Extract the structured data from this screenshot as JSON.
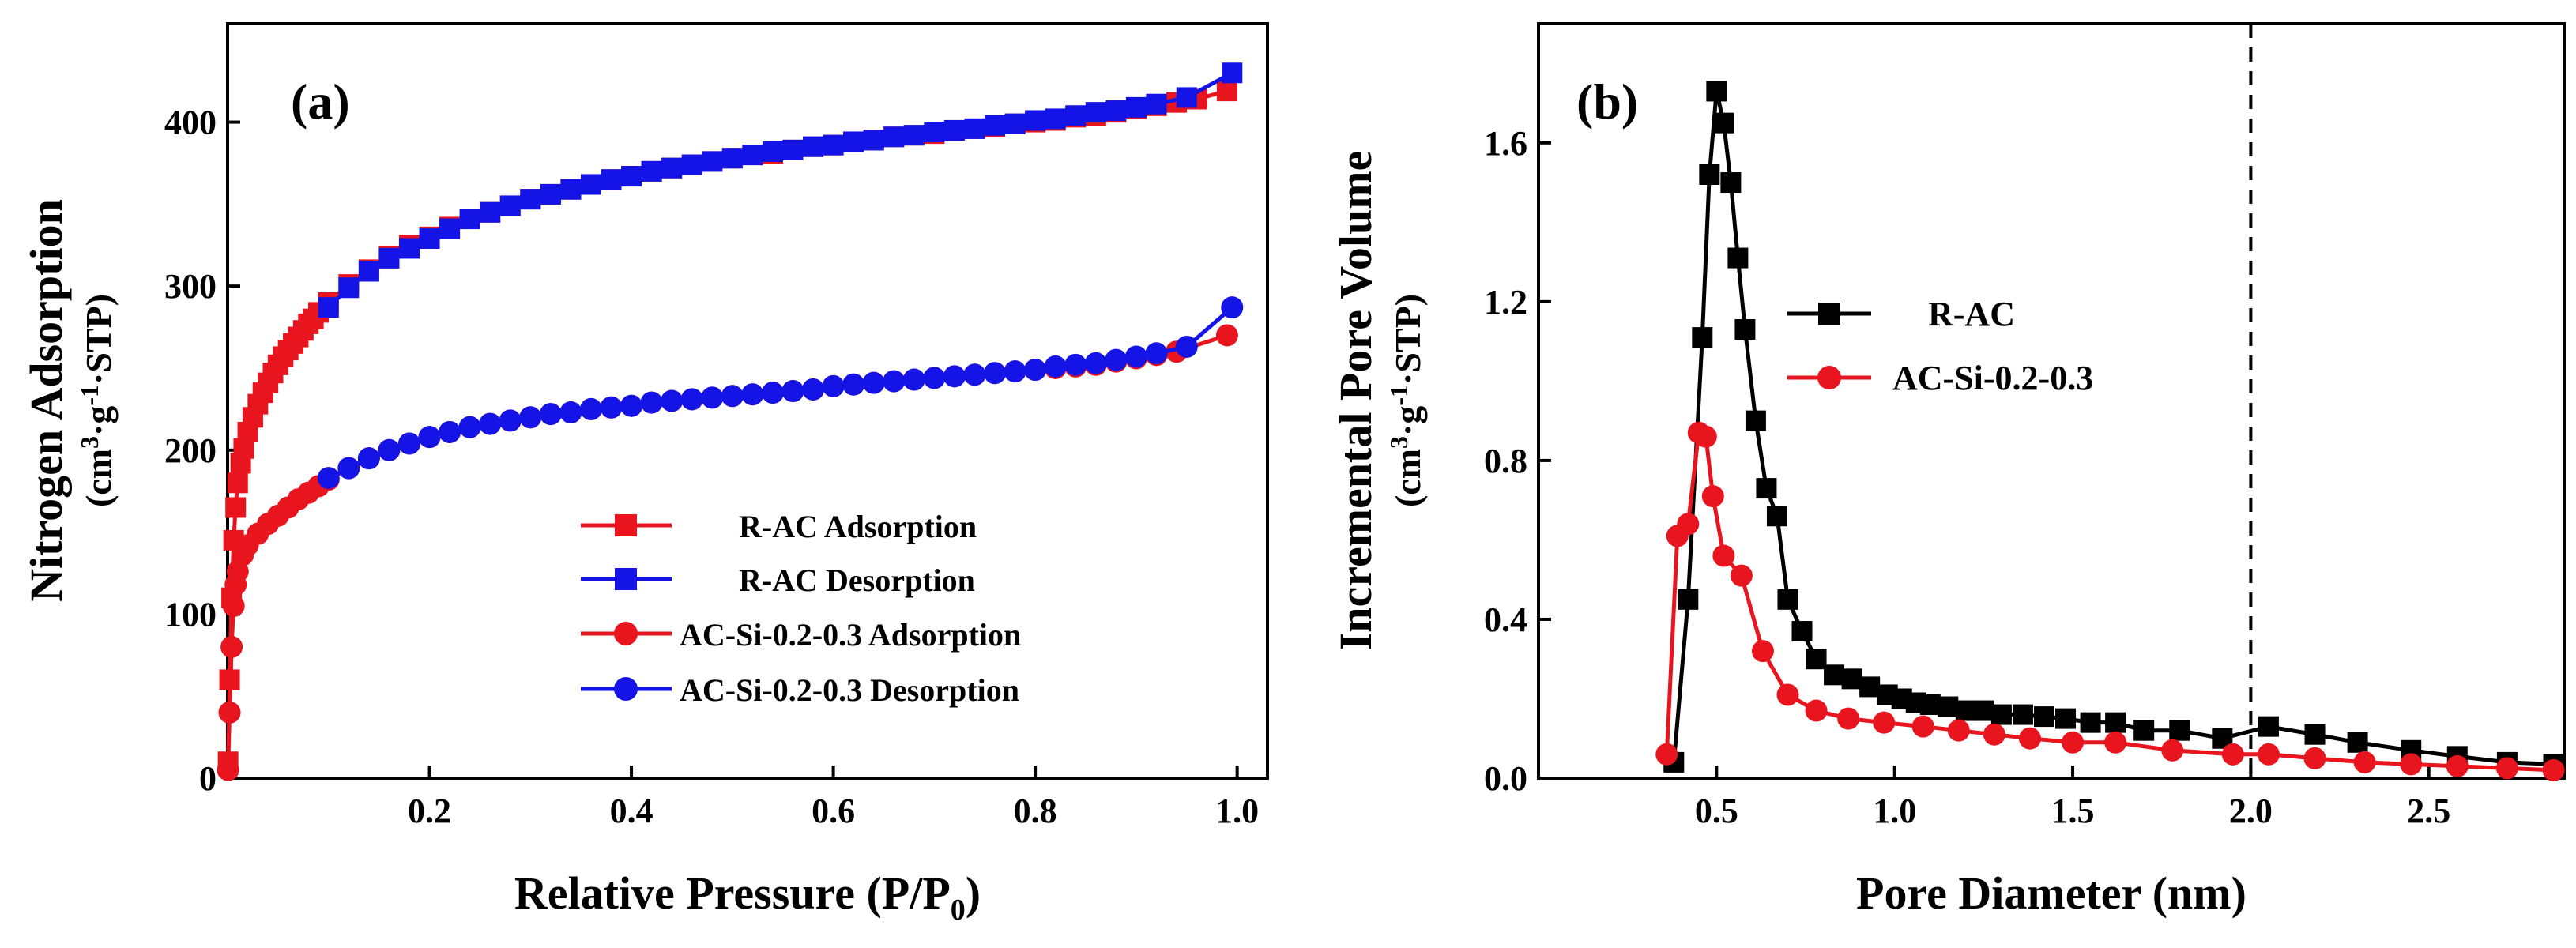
{
  "chart_data": [
    {
      "type": "line",
      "panel_label": "(a)",
      "xlabel": "Relative Pressure (P/P",
      "xlabel_sub": "0",
      "xlabel_end": ")",
      "ylabel": "Nitrogen Adsorption",
      "yunit": {
        "pre": "(cm",
        "sup1": "3",
        "dot1": "·",
        "g": "g",
        "sup2": "-1",
        "dot2": "·",
        "post": "STP)"
      },
      "xlim": [
        0.0,
        1.03
      ],
      "ylim": [
        0,
        460
      ],
      "xticks": [
        0.2,
        0.4,
        0.6,
        0.8,
        1.0
      ],
      "xtick_labels": [
        "0.2",
        "0.4",
        "0.6",
        "0.8",
        "1.0"
      ],
      "yticks": [
        0,
        100,
        200,
        300,
        400
      ],
      "ytick_labels": [
        "0",
        "100",
        "200",
        "300",
        "400"
      ],
      "grid": false,
      "legend_position": "bottom-right",
      "series": [
        {
          "name": "R-AC Adsorption",
          "color": "#e8141e",
          "marker": "square",
          "x": [
            0.0005,
            0.002,
            0.004,
            0.006,
            0.008,
            0.01,
            0.013,
            0.016,
            0.02,
            0.025,
            0.03,
            0.035,
            0.04,
            0.045,
            0.05,
            0.055,
            0.06,
            0.065,
            0.07,
            0.075,
            0.08,
            0.085,
            0.09,
            0.1,
            0.12,
            0.14,
            0.16,
            0.18,
            0.2,
            0.22,
            0.24,
            0.26,
            0.28,
            0.3,
            0.32,
            0.34,
            0.36,
            0.38,
            0.4,
            0.42,
            0.44,
            0.46,
            0.48,
            0.5,
            0.52,
            0.54,
            0.56,
            0.58,
            0.6,
            0.62,
            0.64,
            0.66,
            0.68,
            0.7,
            0.72,
            0.74,
            0.76,
            0.78,
            0.8,
            0.82,
            0.84,
            0.86,
            0.88,
            0.9,
            0.92,
            0.94,
            0.96,
            0.99
          ],
          "y": [
            10,
            60,
            110,
            145,
            165,
            180,
            192,
            201,
            211,
            220,
            228,
            235,
            241,
            247,
            252,
            257,
            261,
            265,
            269,
            273,
            277,
            280,
            284,
            290,
            301,
            310,
            318,
            325,
            330,
            336,
            341,
            345,
            349,
            353,
            356,
            359,
            362,
            365,
            367,
            370,
            372,
            374,
            376,
            378,
            380,
            381,
            383,
            385,
            386,
            388,
            389,
            391,
            392,
            393,
            395,
            396,
            397,
            399,
            400,
            401,
            403,
            404,
            406,
            408,
            410,
            412,
            414,
            419
          ]
        },
        {
          "name": "R-AC Desorption",
          "color": "#1414e6",
          "marker": "square",
          "x": [
            0.1,
            0.12,
            0.14,
            0.16,
            0.18,
            0.2,
            0.22,
            0.24,
            0.26,
            0.28,
            0.3,
            0.32,
            0.34,
            0.36,
            0.38,
            0.4,
            0.42,
            0.44,
            0.46,
            0.48,
            0.5,
            0.52,
            0.54,
            0.56,
            0.58,
            0.6,
            0.62,
            0.64,
            0.66,
            0.68,
            0.7,
            0.72,
            0.74,
            0.76,
            0.78,
            0.8,
            0.82,
            0.84,
            0.86,
            0.88,
            0.9,
            0.92,
            0.95,
            0.995
          ],
          "y": [
            287,
            299,
            309,
            317,
            323,
            329,
            335,
            341,
            345,
            349,
            353,
            356,
            359,
            362,
            365,
            367,
            370,
            372,
            374,
            376,
            378,
            380,
            382,
            383,
            385,
            386,
            388,
            389,
            391,
            392,
            394,
            395,
            396,
            398,
            399,
            401,
            402,
            404,
            406,
            407,
            409,
            411,
            415,
            430
          ]
        },
        {
          "name": "AC-Si-0.2-0.3 Adsorption",
          "color": "#e8141e",
          "marker": "circle",
          "x": [
            0.0005,
            0.002,
            0.004,
            0.006,
            0.008,
            0.01,
            0.015,
            0.02,
            0.03,
            0.04,
            0.05,
            0.06,
            0.07,
            0.08,
            0.09,
            0.1,
            0.12,
            0.14,
            0.16,
            0.18,
            0.2,
            0.22,
            0.24,
            0.26,
            0.28,
            0.3,
            0.32,
            0.34,
            0.36,
            0.38,
            0.4,
            0.42,
            0.44,
            0.46,
            0.48,
            0.5,
            0.52,
            0.54,
            0.56,
            0.58,
            0.6,
            0.62,
            0.64,
            0.66,
            0.68,
            0.7,
            0.72,
            0.74,
            0.76,
            0.78,
            0.8,
            0.82,
            0.84,
            0.86,
            0.88,
            0.9,
            0.92,
            0.94,
            0.99
          ],
          "y": [
            5,
            40,
            80,
            105,
            118,
            126,
            136,
            142,
            149,
            155,
            160,
            165,
            170,
            174,
            178,
            182,
            189,
            195,
            200,
            204,
            208,
            211,
            214,
            216,
            218,
            220,
            222,
            223,
            225,
            226,
            227,
            229,
            230,
            231,
            232,
            233,
            234,
            235,
            236,
            237,
            239,
            240,
            241,
            242,
            243,
            244,
            245,
            246,
            247,
            248,
            249,
            250,
            251,
            252,
            254,
            256,
            258,
            260,
            270
          ]
        },
        {
          "name": "AC-Si-0.2-0.3 Desorption",
          "color": "#1414e6",
          "marker": "circle",
          "x": [
            0.1,
            0.12,
            0.14,
            0.16,
            0.18,
            0.2,
            0.22,
            0.24,
            0.26,
            0.28,
            0.3,
            0.32,
            0.34,
            0.36,
            0.38,
            0.4,
            0.42,
            0.44,
            0.46,
            0.48,
            0.5,
            0.52,
            0.54,
            0.56,
            0.58,
            0.6,
            0.62,
            0.64,
            0.66,
            0.68,
            0.7,
            0.72,
            0.74,
            0.76,
            0.78,
            0.8,
            0.82,
            0.84,
            0.86,
            0.88,
            0.9,
            0.92,
            0.95,
            0.995
          ],
          "y": [
            183,
            189,
            195,
            200,
            204,
            208,
            211,
            214,
            216,
            218,
            220,
            222,
            223,
            225,
            226,
            227,
            229,
            230,
            231,
            232,
            233,
            234,
            235,
            236,
            237,
            239,
            240,
            241,
            242,
            243,
            244,
            245,
            246,
            247,
            248,
            249,
            251,
            252,
            253,
            255,
            257,
            259,
            263,
            287
          ]
        }
      ]
    },
    {
      "type": "line",
      "panel_label": "(b)",
      "xlabel": "Pore Diameter (nm)",
      "ylabel": "Incremental Pore Volume",
      "yunit": {
        "pre": "(cm",
        "sup1": "3",
        "dot1": "·",
        "g": "g",
        "sup2": "-1",
        "dot2": "·",
        "post": "STP)"
      },
      "xlim": [
        0.0,
        2.88
      ],
      "ylim": [
        0.0,
        1.9
      ],
      "xticks": [
        0.5,
        1.0,
        1.5,
        2.0,
        2.5
      ],
      "xtick_labels": [
        "0.5",
        "1.0",
        "1.5",
        "2.0",
        "2.5"
      ],
      "yticks": [
        0.0,
        0.4,
        0.8,
        1.2,
        1.6
      ],
      "ytick_labels": [
        "0.0",
        "0.4",
        "0.8",
        "1.2",
        "1.6"
      ],
      "grid": false,
      "legend_position": "middle",
      "vline": {
        "x": 2.0,
        "style": "dashed"
      },
      "series": [
        {
          "name": "R-AC",
          "color": "#000000",
          "marker": "square",
          "x": [
            0.38,
            0.42,
            0.46,
            0.48,
            0.5,
            0.52,
            0.54,
            0.56,
            0.58,
            0.61,
            0.64,
            0.67,
            0.7,
            0.74,
            0.78,
            0.83,
            0.88,
            0.93,
            0.98,
            1.02,
            1.06,
            1.1,
            1.15,
            1.2,
            1.25,
            1.3,
            1.36,
            1.42,
            1.48,
            1.55,
            1.62,
            1.7,
            1.8,
            1.92,
            2.05,
            2.18,
            2.3,
            2.45,
            2.58,
            2.72,
            2.85
          ],
          "y": [
            0.04,
            0.45,
            1.11,
            1.52,
            1.73,
            1.65,
            1.5,
            1.31,
            1.13,
            0.9,
            0.73,
            0.66,
            0.45,
            0.37,
            0.3,
            0.26,
            0.25,
            0.23,
            0.21,
            0.2,
            0.19,
            0.185,
            0.18,
            0.17,
            0.17,
            0.16,
            0.16,
            0.155,
            0.15,
            0.14,
            0.14,
            0.12,
            0.12,
            0.1,
            0.13,
            0.11,
            0.09,
            0.07,
            0.055,
            0.04,
            0.035
          ]
        },
        {
          "name": "AC-Si-0.2-0.3",
          "color": "#e8141e",
          "marker": "circle",
          "x": [
            0.36,
            0.39,
            0.42,
            0.45,
            0.47,
            0.49,
            0.52,
            0.57,
            0.63,
            0.7,
            0.78,
            0.87,
            0.97,
            1.08,
            1.18,
            1.28,
            1.38,
            1.5,
            1.62,
            1.78,
            1.95,
            2.05,
            2.18,
            2.32,
            2.45,
            2.58,
            2.72,
            2.85
          ],
          "y": [
            0.06,
            0.61,
            0.64,
            0.87,
            0.86,
            0.71,
            0.56,
            0.51,
            0.32,
            0.21,
            0.17,
            0.15,
            0.14,
            0.13,
            0.12,
            0.11,
            0.1,
            0.09,
            0.09,
            0.07,
            0.06,
            0.06,
            0.05,
            0.04,
            0.035,
            0.03,
            0.025,
            0.02
          ]
        }
      ]
    }
  ]
}
